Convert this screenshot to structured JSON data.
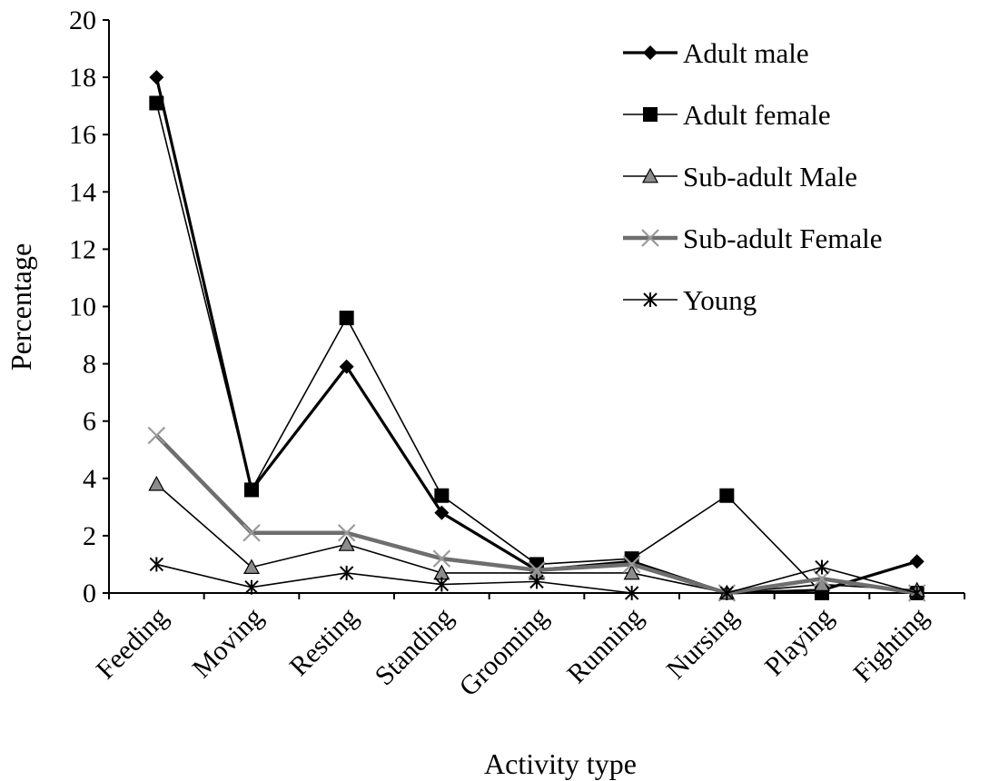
{
  "chart_data": {
    "type": "line",
    "title": "",
    "xlabel": "Activity type",
    "ylabel": "Percentage",
    "ylim": [
      0,
      20
    ],
    "yticks": [
      "0",
      "2",
      "4",
      "6",
      "8",
      "10",
      "12",
      "14",
      "16",
      "18",
      "20"
    ],
    "grid": false,
    "legend_position": "top-right",
    "categories": [
      "Feeding",
      "Moving",
      "Resting",
      "Standing",
      "Grooming",
      "Running",
      "Nursing",
      "Playing",
      "Fighting"
    ],
    "series": [
      {
        "name": "Adult male",
        "marker": "diamond-icon",
        "color": "#000000",
        "values": [
          18.0,
          3.6,
          7.9,
          2.8,
          0.8,
          1.1,
          0.0,
          0.1,
          1.1
        ]
      },
      {
        "name": "Adult female",
        "marker": "square-icon",
        "color": "#000000",
        "values": [
          17.1,
          3.6,
          9.6,
          3.4,
          1.0,
          1.2,
          3.4,
          0.0,
          0.0
        ]
      },
      {
        "name": "Sub-adult Male",
        "marker": "triangle-icon",
        "color": "#808080",
        "values": [
          3.8,
          0.9,
          1.7,
          0.7,
          0.7,
          0.7,
          0.0,
          0.3,
          0.1
        ]
      },
      {
        "name": "Sub-adult Female",
        "marker": "x-icon",
        "color": "#6e6e6e",
        "values": [
          5.5,
          2.1,
          2.1,
          1.2,
          0.8,
          1.0,
          0.0,
          0.5,
          0.0
        ]
      },
      {
        "name": "Young",
        "marker": "asterisk-icon",
        "color": "#000000",
        "values": [
          1.0,
          0.2,
          0.7,
          0.3,
          0.4,
          0.0,
          0.0,
          0.9,
          0.0
        ]
      }
    ]
  }
}
